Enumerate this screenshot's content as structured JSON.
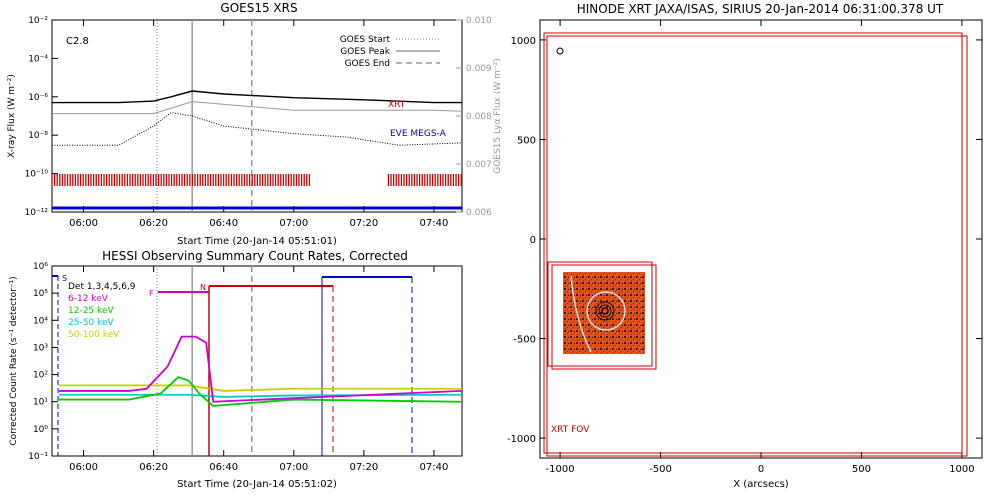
{
  "chart_data": [
    {
      "type": "line",
      "title": "GOES15 XRS",
      "xlabel": "Start Time (20-Jan-14 05:51:01)",
      "ylabel": "X-ray Flux (W m⁻²)",
      "y2label": "GOES15 Lyα Flux (W m⁻²)",
      "xlim": [
        "05:51",
        "07:48"
      ],
      "ylim": [
        1e-12,
        0.01
      ],
      "y2lim": [
        0.006,
        0.01
      ],
      "yscale": "log",
      "x_ticks": [
        "06:00",
        "06:20",
        "06:40",
        "07:00",
        "07:20",
        "07:40"
      ],
      "y_ticks": [
        "10⁻¹²",
        "10⁻¹⁰",
        "10⁻⁸",
        "10⁻⁶",
        "10⁻⁴",
        "10⁻²"
      ],
      "y2_ticks": [
        "0.006",
        "0.007",
        "0.008",
        "0.009",
        "0.010"
      ],
      "flare_class": "C2.8",
      "legend": [
        "GOES Start",
        "GOES Peak",
        "GOES End"
      ],
      "legend_position": "top-right",
      "event_lines": {
        "start": "06:21",
        "peak": "06:31",
        "end": "06:48"
      },
      "annotations": [
        {
          "text": "XRT",
          "color": "#cc0000"
        },
        {
          "text": "EVE MEGS-A",
          "color": "#0000cc"
        }
      ],
      "series": [
        {
          "name": "long",
          "color": "#000000",
          "x": [
            "05:51",
            "06:10",
            "06:20",
            "06:25",
            "06:31",
            "06:40",
            "07:00",
            "07:20",
            "07:40",
            "07:48"
          ],
          "y": [
            5e-07,
            5e-07,
            6e-07,
            1e-06,
            2e-06,
            1.4e-06,
            9e-07,
            7e-07,
            5e-07,
            5e-07
          ]
        },
        {
          "name": "short",
          "color": "#000000",
          "x": [
            "05:51",
            "06:10",
            "06:20",
            "06:25",
            "06:31",
            "06:40",
            "07:00",
            "07:15",
            "07:30",
            "07:48"
          ],
          "y": [
            3e-09,
            3e-09,
            3e-08,
            1.5e-07,
            1e-07,
            3e-08,
            1.2e-08,
            8e-09,
            3e-09,
            4e-09
          ]
        },
        {
          "name": "lya",
          "color": "#999999",
          "x": [
            "05:51",
            "06:20",
            "06:31",
            "07:00",
            "07:40",
            "07:48"
          ],
          "y": [
            0.00805,
            0.00805,
            0.0083,
            0.00812,
            0.00812,
            0.0081
          ]
        }
      ],
      "xrt_bands": [
        [
          "05:51",
          "07:05"
        ],
        [
          "07:27",
          "07:48"
        ]
      ]
    },
    {
      "type": "line",
      "title": "HESSI Observing Summary Count Rates, Corrected",
      "xlabel": "Start Time (20-Jan-14 05:51:02)",
      "ylabel": "Corrected Count Rate (s⁻¹ detector⁻¹)",
      "xlim": [
        "05:51",
        "07:48"
      ],
      "ylim": [
        0.1,
        1000000.0
      ],
      "yscale": "log",
      "x_ticks": [
        "06:00",
        "06:20",
        "06:40",
        "07:00",
        "07:20",
        "07:40"
      ],
      "y_ticks": [
        "10⁻¹",
        "10⁰",
        "10¹",
        "10²",
        "10³",
        "10⁴",
        "10⁵",
        "10⁶"
      ],
      "detectors": "Det 1,3,4,5,6,9",
      "legend_position": "top-left",
      "event_lines": {
        "start": "06:21",
        "peak": "06:31",
        "end": "06:48"
      },
      "markers": [
        {
          "text": "S",
          "color": "#0000cc"
        },
        {
          "text": "F",
          "color": "#cc00cc"
        },
        {
          "text": "N",
          "color": "#cc0000"
        }
      ],
      "series": [
        {
          "name": "6-12 keV",
          "color": "#cc00cc",
          "x": [
            "05:53",
            "06:13",
            "06:18",
            "06:24",
            "06:28",
            "06:32",
            "06:35",
            "06:37",
            "07:48"
          ],
          "y": [
            25,
            25,
            30,
            200,
            2500,
            2500,
            1500,
            10,
            25
          ]
        },
        {
          "name": "12-25 keV",
          "color": "#00cc00",
          "x": [
            "05:53",
            "06:13",
            "06:22",
            "06:27",
            "06:30",
            "06:33",
            "06:37",
            "07:00",
            "07:48"
          ],
          "y": [
            12,
            12,
            20,
            80,
            60,
            20,
            7,
            12,
            10
          ]
        },
        {
          "name": "25-50 keV",
          "color": "#00cccc",
          "x": [
            "05:53",
            "06:15",
            "06:30",
            "06:40",
            "07:00",
            "07:48"
          ],
          "y": [
            18,
            18,
            18,
            15,
            17,
            18
          ]
        },
        {
          "name": "50-100 keV",
          "color": "#cccc00",
          "x": [
            "05:53",
            "06:15",
            "06:30",
            "06:40",
            "07:00",
            "07:48"
          ],
          "y": [
            40,
            40,
            40,
            25,
            30,
            30
          ]
        }
      ]
    },
    {
      "type": "scatter",
      "title": "HINODE XRT JAXA/ISAS, SIRIUS 20-Jan-2014 06:31:00.378 UT",
      "xlabel": "X (arcsecs)",
      "ylabel": "",
      "xlim": [
        -1100,
        1100
      ],
      "ylim": [
        -1100,
        1100
      ],
      "x_ticks": [
        "-1000",
        "-500",
        "0",
        "500",
        "1000"
      ],
      "y_ticks": [
        "-1000",
        "-500",
        "0",
        "500",
        "1000"
      ],
      "annotation": {
        "text": "XRT FOV",
        "color": "#cc0000"
      }
    }
  ]
}
